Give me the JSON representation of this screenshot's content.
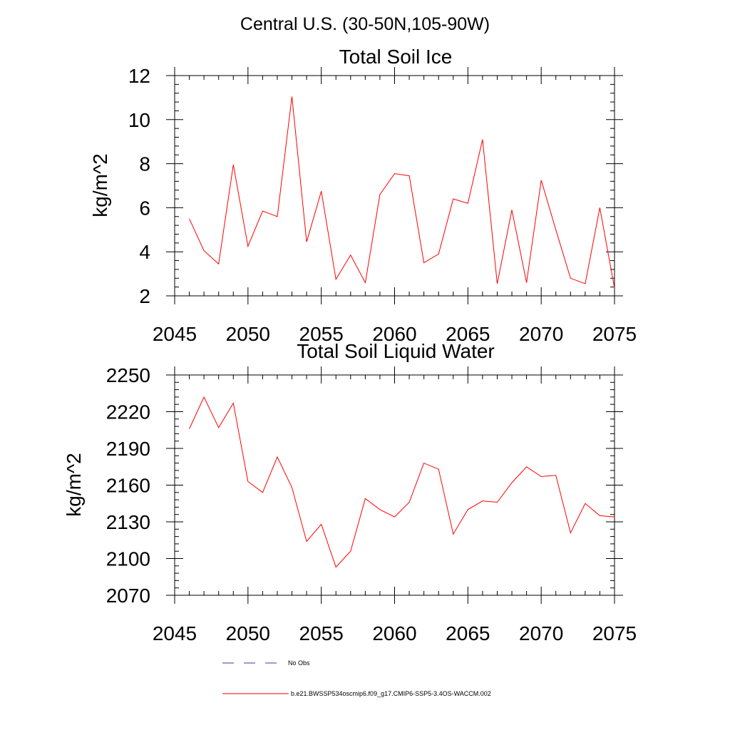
{
  "page_title": "Central U.S. (30-50N,105-90W)",
  "chart_data": [
    {
      "type": "line",
      "title": "Total Soil Ice",
      "ylabel": "kg/m^2",
      "xlabel": "",
      "xlim": [
        2045,
        2075
      ],
      "ylim": [
        2,
        12
      ],
      "xticks": [
        2045,
        2050,
        2055,
        2060,
        2065,
        2070,
        2075
      ],
      "yticks": [
        2,
        4,
        6,
        8,
        10,
        12
      ],
      "grid": false,
      "series": [
        {
          "name": "b.e21.BWSSP534oscmip6.f09_g17.CMIP6-SSP5-3.4OS-WACCM.002",
          "color": "#ff0000",
          "x": [
            2046,
            2047,
            2048,
            2049,
            2050,
            2051,
            2052,
            2053,
            2054,
            2055,
            2056,
            2057,
            2058,
            2059,
            2060,
            2061,
            2062,
            2063,
            2064,
            2065,
            2066,
            2067,
            2068,
            2069,
            2070,
            2071,
            2072,
            2073,
            2074,
            2075
          ],
          "y": [
            5.5,
            4.05,
            3.45,
            7.95,
            4.25,
            5.85,
            5.6,
            11.05,
            4.45,
            6.75,
            2.75,
            3.85,
            2.6,
            6.6,
            7.55,
            7.45,
            3.5,
            3.9,
            6.4,
            6.2,
            9.1,
            2.55,
            5.9,
            2.6,
            7.25,
            5.0,
            2.8,
            2.55,
            6.0,
            2.35
          ]
        }
      ]
    },
    {
      "type": "line",
      "title": "Total Soil Liquid Water",
      "ylabel": "kg/m^2",
      "xlabel": "",
      "xlim": [
        2045,
        2075
      ],
      "ylim": [
        2070,
        2250
      ],
      "xticks": [
        2045,
        2050,
        2055,
        2060,
        2065,
        2070,
        2075
      ],
      "yticks": [
        2070,
        2100,
        2130,
        2160,
        2190,
        2220,
        2250
      ],
      "grid": false,
      "series": [
        {
          "name": "b.e21.BWSSP534oscmip6.f09_g17.CMIP6-SSP5-3.4OS-WACCM.002",
          "color": "#ff0000",
          "x": [
            2046,
            2047,
            2048,
            2049,
            2050,
            2051,
            2052,
            2053,
            2054,
            2055,
            2056,
            2057,
            2058,
            2059,
            2060,
            2061,
            2062,
            2063,
            2064,
            2065,
            2066,
            2067,
            2068,
            2069,
            2070,
            2071,
            2072,
            2073,
            2074,
            2075
          ],
          "y": [
            2206,
            2232,
            2207,
            2227,
            2163,
            2154,
            2183,
            2158,
            2114,
            2128,
            2093,
            2106,
            2149,
            2140,
            2134,
            2146,
            2178,
            2173,
            2120,
            2140,
            2147,
            2146,
            2162,
            2175,
            2167,
            2168,
            2121,
            2145,
            2135,
            2134
          ]
        }
      ]
    }
  ],
  "legend": {
    "entries": [
      {
        "label": "No Obs",
        "color": "#3a3a9a",
        "style": "dashed"
      },
      {
        "label": "b.e21.BWSSP534oscmip6.f09_g17.CMIP6-SSP5-3.4OS-WACCM.002",
        "color": "#ff0000",
        "style": "solid"
      }
    ]
  }
}
